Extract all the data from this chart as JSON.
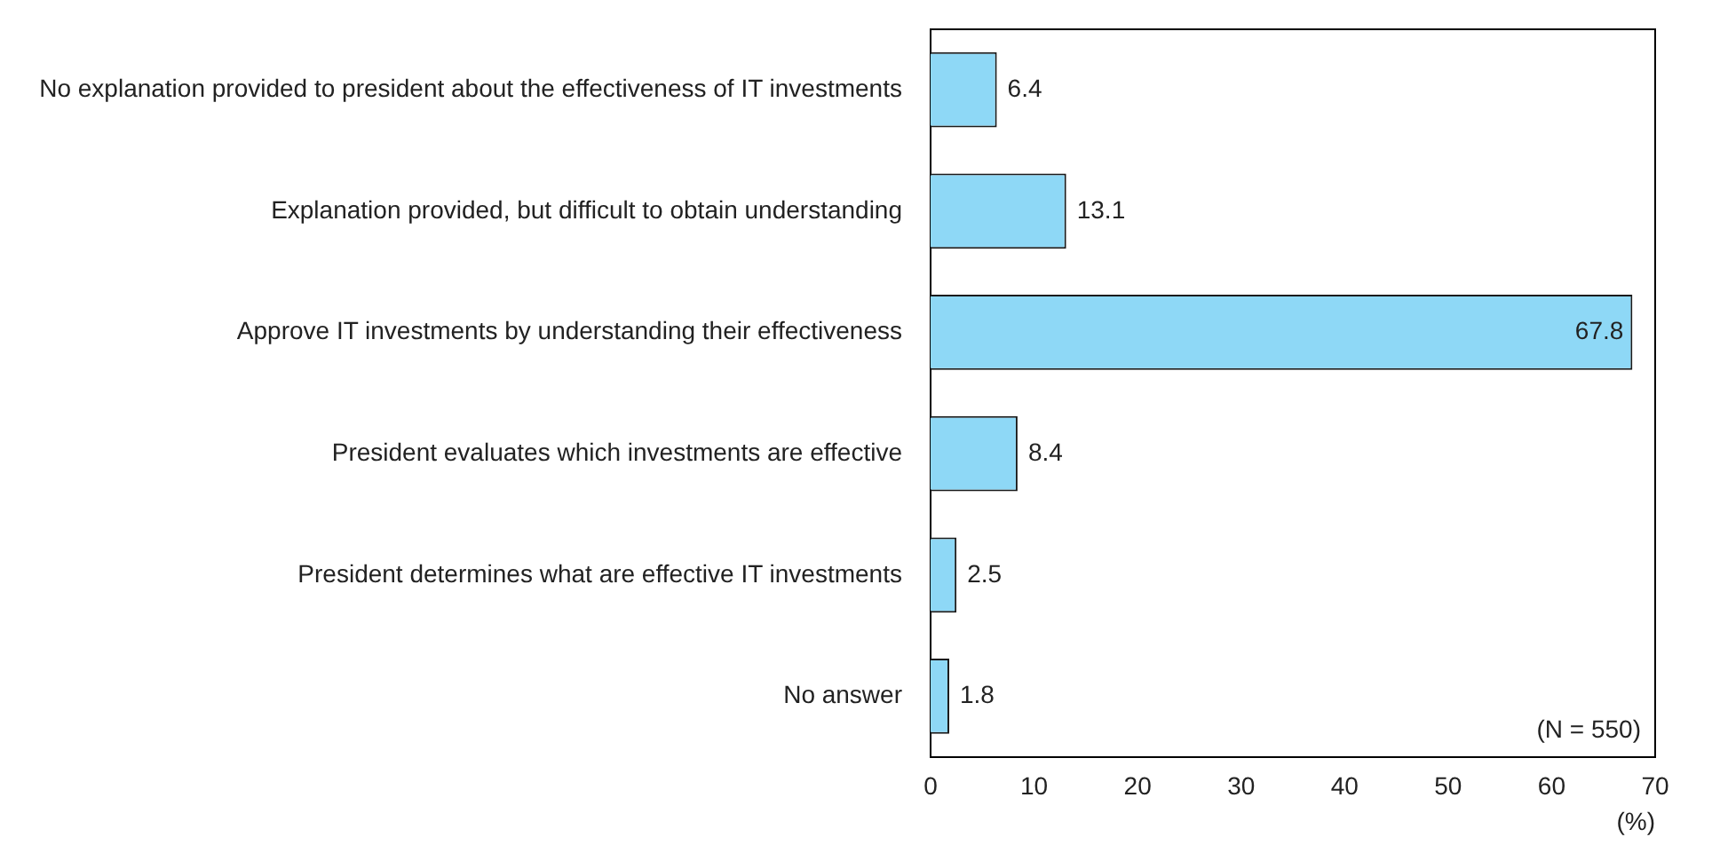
{
  "chart_data": {
    "type": "bar",
    "orientation": "horizontal",
    "categories": [
      "No explanation provided to president about the effectiveness of IT investments",
      "Explanation provided, but difficult to obtain understanding",
      "Approve IT investments by understanding their effectiveness",
      "President evaluates which investments are effective",
      "President determines what are effective IT investments",
      "No answer"
    ],
    "values": [
      6.4,
      13.1,
      67.8,
      8.4,
      2.5,
      1.8
    ],
    "color": "#8ed8f6",
    "xlim": [
      0,
      70
    ],
    "xticks": [
      0,
      10,
      20,
      30,
      40,
      50,
      60,
      70
    ],
    "xlabel": "(%)",
    "annotations": [
      "(N = 550)"
    ],
    "data_labels": true,
    "grid": false,
    "legend": false
  }
}
